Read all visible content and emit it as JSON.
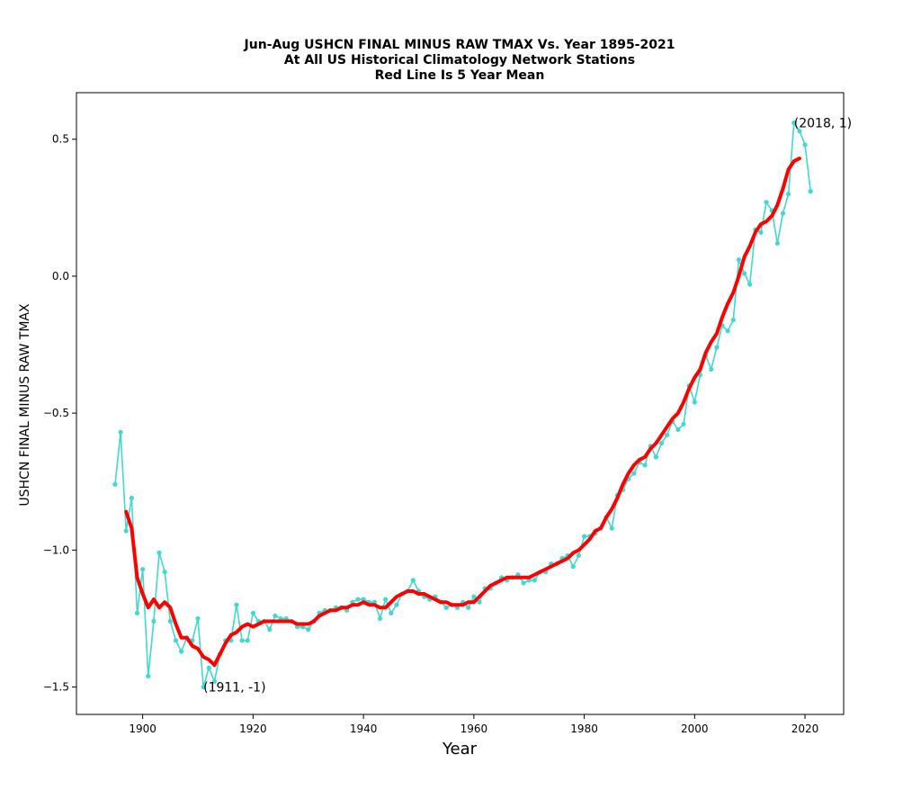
{
  "chart_data": {
    "type": "line",
    "title_lines": [
      "Jun-Aug USHCN FINAL MINUS RAW TMAX Vs. Year 1895-2021",
      "At All US Historical Climatology Network Stations",
      "Red Line Is 5 Year Mean"
    ],
    "xlabel": "Year",
    "ylabel": "USHCN FINAL MINUS RAW TMAX",
    "xlim": [
      1888,
      2027
    ],
    "ylim": [
      -1.6,
      0.67
    ],
    "xticks": [
      1900,
      1920,
      1940,
      1960,
      1980,
      2000,
      2020
    ],
    "yticks": [
      -1.5,
      -1.0,
      -0.5,
      0.0,
      0.5
    ],
    "ytick_labels": [
      "−1.5",
      "−1.0",
      "−0.5",
      "0.0",
      "0.5"
    ],
    "grid": false,
    "series": [
      {
        "role": "annual",
        "color": "#40d8d0",
        "marker": "dot",
        "x": [
          1895,
          1896,
          1897,
          1898,
          1899,
          1900,
          1901,
          1902,
          1903,
          1904,
          1905,
          1906,
          1907,
          1908,
          1909,
          1910,
          1911,
          1912,
          1913,
          1914,
          1915,
          1916,
          1917,
          1918,
          1919,
          1920,
          1921,
          1922,
          1923,
          1924,
          1925,
          1926,
          1927,
          1928,
          1929,
          1930,
          1931,
          1932,
          1933,
          1934,
          1935,
          1936,
          1937,
          1938,
          1939,
          1940,
          1941,
          1942,
          1943,
          1944,
          1945,
          1946,
          1947,
          1948,
          1949,
          1950,
          1951,
          1952,
          1953,
          1954,
          1955,
          1956,
          1957,
          1958,
          1959,
          1960,
          1961,
          1962,
          1963,
          1964,
          1965,
          1966,
          1967,
          1968,
          1969,
          1970,
          1971,
          1972,
          1973,
          1974,
          1975,
          1976,
          1977,
          1978,
          1979,
          1980,
          1981,
          1982,
          1983,
          1984,
          1985,
          1986,
          1987,
          1988,
          1989,
          1990,
          1991,
          1992,
          1993,
          1994,
          1995,
          1996,
          1997,
          1998,
          1999,
          2000,
          2001,
          2002,
          2003,
          2004,
          2005,
          2006,
          2007,
          2008,
          2009,
          2010,
          2011,
          2012,
          2013,
          2014,
          2015,
          2016,
          2017,
          2018,
          2019,
          2020,
          2021
        ],
        "y": [
          -0.76,
          -0.57,
          -0.93,
          -0.81,
          -1.23,
          -1.07,
          -1.46,
          -1.26,
          -1.01,
          -1.08,
          -1.26,
          -1.33,
          -1.37,
          -1.32,
          -1.33,
          -1.25,
          -1.5,
          -1.43,
          -1.48,
          -1.38,
          -1.33,
          -1.33,
          -1.2,
          -1.33,
          -1.33,
          -1.23,
          -1.26,
          -1.26,
          -1.29,
          -1.24,
          -1.25,
          -1.25,
          -1.26,
          -1.28,
          -1.28,
          -1.29,
          -1.26,
          -1.23,
          -1.22,
          -1.22,
          -1.21,
          -1.21,
          -1.22,
          -1.19,
          -1.18,
          -1.18,
          -1.19,
          -1.19,
          -1.25,
          -1.18,
          -1.23,
          -1.2,
          -1.16,
          -1.15,
          -1.11,
          -1.15,
          -1.17,
          -1.18,
          -1.17,
          -1.19,
          -1.21,
          -1.2,
          -1.21,
          -1.19,
          -1.21,
          -1.17,
          -1.19,
          -1.14,
          -1.14,
          -1.12,
          -1.1,
          -1.11,
          -1.1,
          -1.09,
          -1.12,
          -1.11,
          -1.11,
          -1.08,
          -1.08,
          -1.05,
          -1.05,
          -1.03,
          -1.02,
          -1.06,
          -1.02,
          -0.95,
          -0.95,
          -0.94,
          -0.92,
          -0.88,
          -0.92,
          -0.8,
          -0.78,
          -0.74,
          -0.72,
          -0.68,
          -0.69,
          -0.62,
          -0.66,
          -0.61,
          -0.58,
          -0.53,
          -0.56,
          -0.54,
          -0.4,
          -0.46,
          -0.36,
          -0.29,
          -0.34,
          -0.26,
          -0.18,
          -0.2,
          -0.16,
          0.06,
          0.01,
          -0.03,
          0.17,
          0.16,
          0.27,
          0.24,
          0.12,
          0.23,
          0.3,
          0.56,
          0.53,
          0.48,
          0.31
        ]
      },
      {
        "role": "5-year mean",
        "color": "#ff0000",
        "marker": "none",
        "x": [
          1897,
          1898,
          1899,
          1900,
          1901,
          1902,
          1903,
          1904,
          1905,
          1906,
          1907,
          1908,
          1909,
          1910,
          1911,
          1912,
          1913,
          1914,
          1915,
          1916,
          1917,
          1918,
          1919,
          1920,
          1921,
          1922,
          1923,
          1924,
          1925,
          1926,
          1927,
          1928,
          1929,
          1930,
          1931,
          1932,
          1933,
          1934,
          1935,
          1936,
          1937,
          1938,
          1939,
          1940,
          1941,
          1942,
          1943,
          1944,
          1945,
          1946,
          1947,
          1948,
          1949,
          1950,
          1951,
          1952,
          1953,
          1954,
          1955,
          1956,
          1957,
          1958,
          1959,
          1960,
          1961,
          1962,
          1963,
          1964,
          1965,
          1966,
          1967,
          1968,
          1969,
          1970,
          1971,
          1972,
          1973,
          1974,
          1975,
          1976,
          1977,
          1978,
          1979,
          1980,
          1981,
          1982,
          1983,
          1984,
          1985,
          1986,
          1987,
          1988,
          1989,
          1990,
          1991,
          1992,
          1993,
          1994,
          1995,
          1996,
          1997,
          1998,
          1999,
          2000,
          2001,
          2002,
          2003,
          2004,
          2005,
          2006,
          2007,
          2008,
          2009,
          2010,
          2011,
          2012,
          2013,
          2014,
          2015,
          2016,
          2017,
          2018,
          2019
        ],
        "y": [
          -0.86,
          -0.92,
          -1.1,
          -1.16,
          -1.21,
          -1.18,
          -1.21,
          -1.19,
          -1.21,
          -1.27,
          -1.32,
          -1.32,
          -1.35,
          -1.36,
          -1.39,
          -1.4,
          -1.42,
          -1.38,
          -1.34,
          -1.31,
          -1.3,
          -1.28,
          -1.27,
          -1.28,
          -1.27,
          -1.26,
          -1.26,
          -1.26,
          -1.26,
          -1.26,
          -1.26,
          -1.27,
          -1.27,
          -1.27,
          -1.26,
          -1.24,
          -1.23,
          -1.22,
          -1.22,
          -1.21,
          -1.21,
          -1.2,
          -1.2,
          -1.19,
          -1.2,
          -1.2,
          -1.21,
          -1.21,
          -1.19,
          -1.17,
          -1.16,
          -1.15,
          -1.15,
          -1.16,
          -1.16,
          -1.17,
          -1.18,
          -1.19,
          -1.19,
          -1.2,
          -1.2,
          -1.2,
          -1.19,
          -1.19,
          -1.17,
          -1.15,
          -1.13,
          -1.12,
          -1.11,
          -1.1,
          -1.1,
          -1.1,
          -1.1,
          -1.1,
          -1.09,
          -1.08,
          -1.07,
          -1.06,
          -1.05,
          -1.04,
          -1.03,
          -1.01,
          -1.0,
          -0.98,
          -0.96,
          -0.93,
          -0.92,
          -0.88,
          -0.85,
          -0.81,
          -0.76,
          -0.72,
          -0.69,
          -0.67,
          -0.66,
          -0.63,
          -0.61,
          -0.58,
          -0.55,
          -0.52,
          -0.5,
          -0.46,
          -0.41,
          -0.37,
          -0.34,
          -0.28,
          -0.24,
          -0.21,
          -0.15,
          -0.1,
          -0.06,
          0.0,
          0.07,
          0.11,
          0.16,
          0.19,
          0.2,
          0.22,
          0.26,
          0.32,
          0.39,
          0.42,
          0.43
        ]
      }
    ],
    "annotations": [
      {
        "text": "(2018, 1)",
        "x": 2018,
        "y": 0.56
      },
      {
        "text": "(1911, -1)",
        "x": 1911,
        "y": -1.5
      }
    ]
  }
}
